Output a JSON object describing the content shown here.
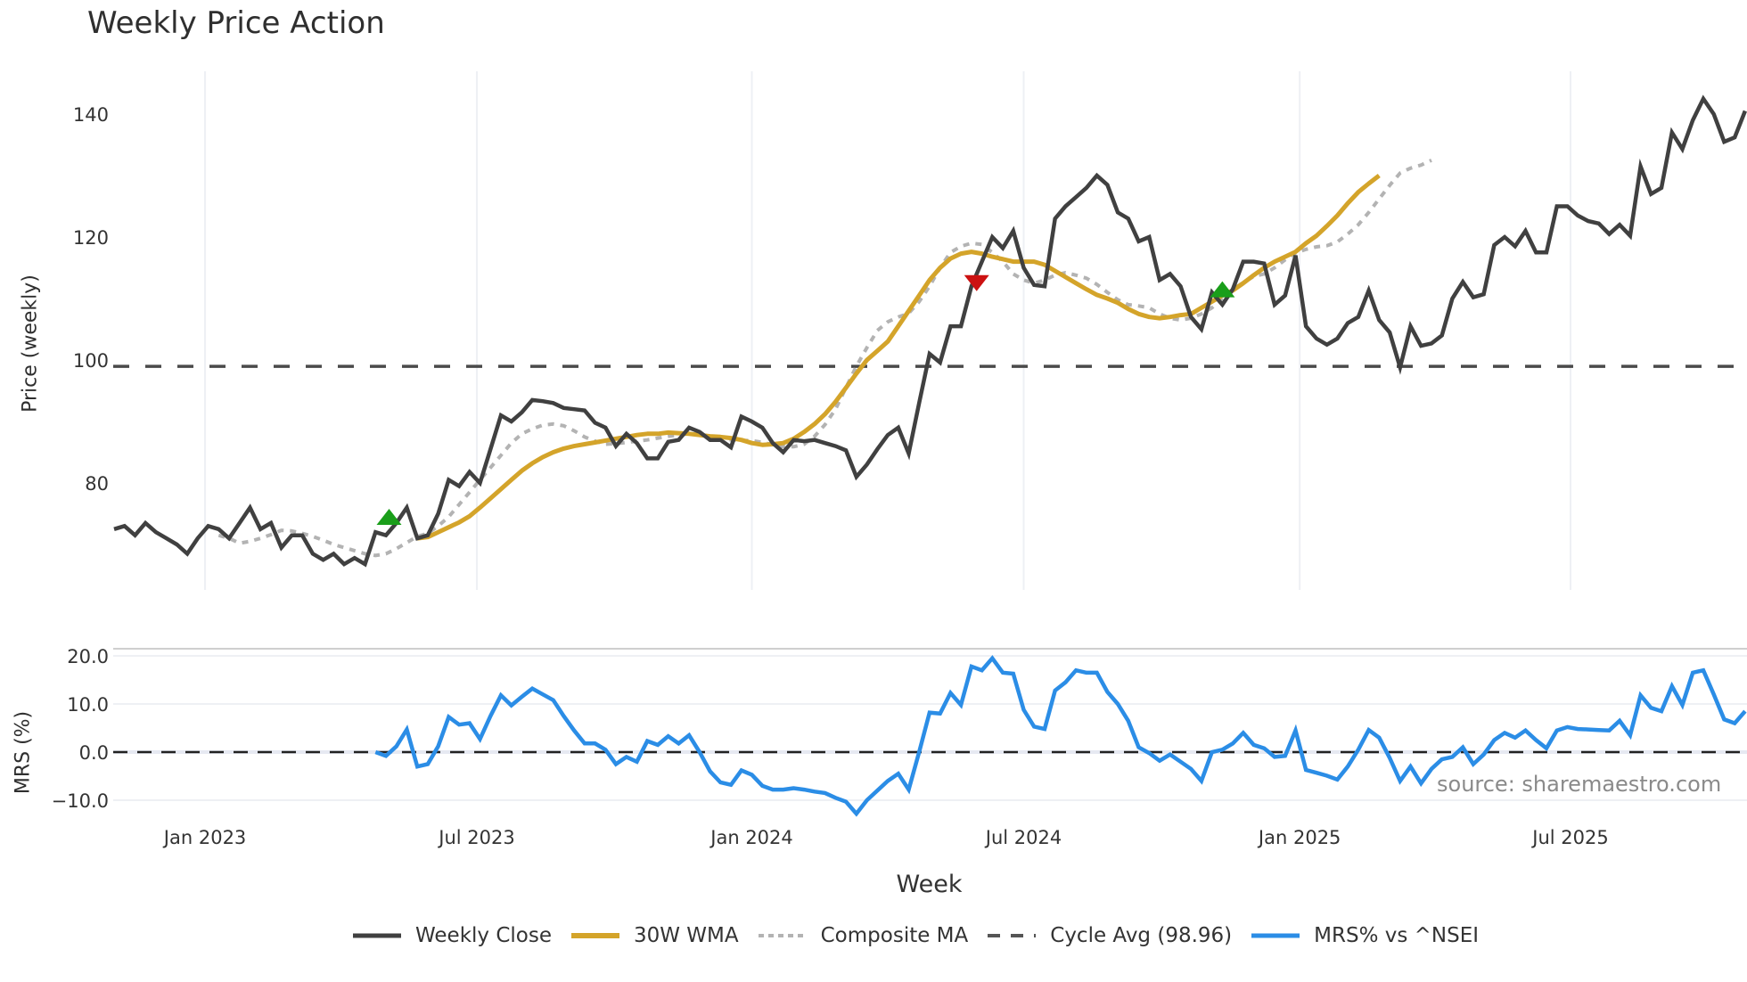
{
  "title": "Weekly Price Action",
  "price_axis_label": "Price (weekly)",
  "mrs_axis_label": "MRS (%)",
  "x_axis_label": "Week",
  "source": "source: sharemaestro.com",
  "colors": {
    "close": "#404040",
    "wma": "#d4a42a",
    "composite": "#b3b3b3",
    "cycle": "#4a4a4a",
    "mrs": "#2b8de6",
    "buy": "#1a9e1a",
    "sell": "#cc1111",
    "grid": "#eef0f4"
  },
  "legend": [
    {
      "key": "close",
      "label": "Weekly Close"
    },
    {
      "key": "wma",
      "label": "30W WMA"
    },
    {
      "key": "composite",
      "label": "Composite MA"
    },
    {
      "key": "cycle",
      "label": "Cycle Avg (98.96)"
    },
    {
      "key": "mrs",
      "label": "MRS% vs ^NSEI"
    }
  ],
  "chart_data": [
    {
      "type": "line",
      "title": "Weekly Price Action",
      "xlabel": "Week",
      "ylabel": "Price (weekly)",
      "ylim": [
        62,
        146
      ],
      "yticks": [
        80,
        100,
        120,
        140
      ],
      "xticks": [
        {
          "label": "Jan 2023",
          "week": 8.7
        },
        {
          "label": "Jul 2023",
          "week": 34.7
        },
        {
          "label": "Jan 2024",
          "week": 61
        },
        {
          "label": "Jul 2024",
          "week": 87
        },
        {
          "label": "Jan 2025",
          "week": 113.4
        },
        {
          "label": "Jul 2025",
          "week": 139.3
        }
      ],
      "grid": "vertical",
      "reference_line": {
        "name": "Cycle Avg",
        "value": 98.96
      },
      "series": [
        {
          "name": "Weekly Close",
          "start_week": 0,
          "values": [
            72.5,
            73,
            71.5,
            73.5,
            72,
            71,
            70,
            68.5,
            71,
            73,
            72.5,
            71,
            73.5,
            76,
            72.5,
            73.5,
            69.5,
            71.5,
            71.5,
            68.5,
            67.5,
            68.5,
            66.8,
            67.8,
            66.8,
            72,
            71.5,
            73.5,
            76,
            71,
            71.5,
            75,
            80.5,
            79.5,
            81.8,
            80,
            85.5,
            91,
            90,
            91.5,
            93.5,
            93.3,
            93,
            92.2,
            92,
            91.8,
            89.8,
            89,
            86,
            88,
            86.5,
            84,
            84,
            86.7,
            87,
            89,
            88.3,
            87,
            87,
            85.8,
            90.8,
            90,
            89,
            86.5,
            85,
            87,
            86.8,
            87,
            86.5,
            86,
            85.3,
            81,
            83,
            85.5,
            87.8,
            89,
            84.8,
            93,
            101,
            99.6,
            105.5,
            105.5,
            112,
            116,
            120,
            118.2,
            121,
            115,
            112.2,
            112,
            123,
            125,
            126.5,
            128,
            130,
            128.5,
            124,
            123,
            119.3,
            120,
            113,
            114,
            112,
            107,
            105,
            111,
            109,
            111.5,
            116,
            116,
            115.7,
            109,
            110.5,
            117,
            105.5,
            103.5,
            102.5,
            103.5,
            106,
            107,
            111.3,
            106.5,
            104.5,
            98.8,
            105.5,
            102.3,
            102.7,
            104,
            110,
            112.7,
            110.2,
            110.7,
            118.7,
            120,
            118.5,
            121,
            117.5,
            117.5,
            125,
            125,
            123.5,
            122.6,
            122.2,
            120.5,
            122,
            120.2,
            131.5,
            127,
            128,
            137,
            134.3,
            139,
            142.5,
            140,
            135.5,
            136.2,
            140.5
          ]
        },
        {
          "name": "30W WMA",
          "start_week": 29,
          "values": [
            71,
            71.2,
            72,
            72.8,
            73.6,
            74.6,
            76,
            77.5,
            79,
            80.5,
            82,
            83.2,
            84.2,
            85,
            85.6,
            86,
            86.3,
            86.6,
            86.9,
            87.2,
            87.5,
            87.8,
            88,
            88,
            88.2,
            88.1,
            88,
            87.8,
            87.6,
            87.5,
            87.3,
            87,
            86.5,
            86.2,
            86.3,
            86.5,
            87.2,
            88.3,
            89.6,
            91.2,
            93.2,
            95.5,
            97.8,
            100,
            101.5,
            103,
            105.5,
            108,
            110.5,
            113,
            115,
            116.5,
            117.3,
            117.6,
            117.3,
            116.8,
            116.4,
            116,
            116,
            116,
            115.5,
            114.5,
            113.5,
            112.5,
            111.5,
            110.6,
            110,
            109.3,
            108.3,
            107.5,
            107,
            106.8,
            107,
            107.3,
            107.5,
            108.5,
            109.5,
            110.5,
            111.3,
            112.5,
            113.8,
            115,
            116,
            116.8,
            117.6,
            119,
            120.2,
            121.8,
            123.5,
            125.5,
            127.3,
            128.7,
            130
          ]
        },
        {
          "name": "Composite MA",
          "start_week": 10,
          "values": [
            71.5,
            71,
            70.2,
            70.5,
            71,
            71.6,
            72.3,
            72.2,
            71.8,
            71.3,
            70.7,
            70,
            69.5,
            69,
            68.5,
            68.2,
            68.5,
            69.3,
            70.3,
            71.3,
            71.8,
            73,
            74.5,
            76.5,
            78.5,
            80.5,
            82.5,
            84.5,
            86.5,
            88,
            88.8,
            89.4,
            89.6,
            89.3,
            88.5,
            87.5,
            86.8,
            86.3,
            86.4,
            86.6,
            86.8,
            87,
            87.3,
            87.6,
            87.8,
            88,
            87.9,
            87.6,
            87.3,
            87,
            86.9,
            86.9,
            86.6,
            86.2,
            85.9,
            85.9,
            86.3,
            87.6,
            89.5,
            92,
            95.5,
            99,
            102,
            104.8,
            106.2,
            107,
            107.6,
            109.5,
            112,
            115,
            117.5,
            118.5,
            119,
            118.8,
            117.5,
            116,
            114,
            113,
            112.5,
            113,
            113.8,
            114.2,
            113.8,
            113.3,
            112.3,
            111,
            109.8,
            109,
            108.8,
            108.5,
            107.5,
            106.8,
            106.5,
            106.8,
            107.5,
            108.5,
            110,
            111.5,
            112.6,
            113.6,
            114,
            115,
            116.3,
            117.4,
            118,
            118.4,
            118.6,
            119.2,
            120.5,
            122,
            124,
            126.2,
            128.4,
            130.4,
            131.2,
            131.7,
            132.5
          ]
        },
        {
          "name": "MRS% vs ^NSEI",
          "axis": "MRS (%)",
          "ylim": [
            -14,
            22
          ],
          "yticks": [
            -10,
            0,
            10,
            20
          ],
          "start_week": 25,
          "values": [
            0,
            -0.8,
            1.2,
            4.7,
            -3,
            -2.5,
            1.2,
            7.3,
            5.7,
            6,
            2.7,
            7.5,
            11.8,
            9.7,
            11.5,
            13.2,
            12,
            10.8,
            7.5,
            4.5,
            1.8,
            1.8,
            0.5,
            -2.5,
            -1,
            -2,
            2.3,
            1.5,
            3.3,
            1.8,
            3.5,
            0,
            -4,
            -6.3,
            -6.8,
            -3.8,
            -4.7,
            -7,
            -7.8,
            -7.8,
            -7.5,
            -7.8,
            -8.2,
            -8.5,
            -9.5,
            -10.3,
            -12.8,
            -10,
            -8,
            -6,
            -4.5,
            -7.8,
            0,
            8.2,
            8,
            12.3,
            9.8,
            17.8,
            17,
            19.5,
            16.5,
            16.3,
            8.8,
            5.3,
            4.8,
            12.8,
            14.5,
            17,
            16.5,
            16.5,
            12.5,
            10,
            6.5,
            1,
            -0.2,
            -1.8,
            -0.5,
            -2,
            -3.5,
            -6,
            0,
            0.5,
            1.8,
            4,
            1.5,
            0.8,
            -1,
            -0.8,
            4.5,
            -3.7,
            -4.3,
            -4.9,
            -5.7,
            -3,
            0.5,
            4.6,
            3,
            -1.2,
            -6,
            -3,
            -6.5,
            -3.5,
            -1.5,
            -1,
            1,
            -2.5,
            -0.5,
            2.5,
            4,
            3,
            4.5,
            2.5,
            0.8,
            4.5,
            5.2,
            4.8,
            4.7,
            4.6,
            4.5,
            6.5,
            3.5,
            11.8,
            9.2,
            8.5,
            13.7,
            9.8,
            16.5,
            17,
            12,
            6.8,
            6,
            8.5
          ]
        }
      ],
      "markers": [
        {
          "type": "buy",
          "shape": "triangle-up",
          "week": 26.3,
          "value": 74.5
        },
        {
          "type": "sell",
          "shape": "triangle-down",
          "week": 82.5,
          "value": 112.5
        },
        {
          "type": "buy",
          "shape": "triangle-up",
          "week": 106,
          "value": 111.5
        }
      ]
    }
  ]
}
